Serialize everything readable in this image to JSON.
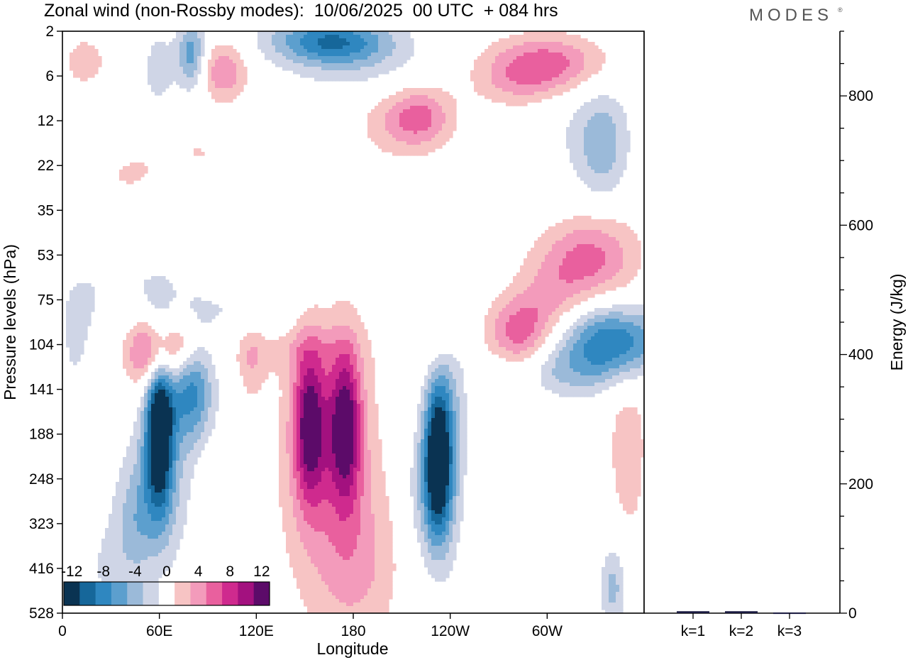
{
  "title": "Zonal wind (non-Rossby modes):  10/06/2025  00 UTC  + 084 hrs",
  "brand": "MODES",
  "brand_mark": "®",
  "colors": {
    "neg": [
      "#0a3352",
      "#16679a",
      "#2f87c0",
      "#5c9fce",
      "#9bbad9",
      "#cfd5e6"
    ],
    "zero": "#ffffff",
    "pos": [
      "#f7c4c4",
      "#f39bbb",
      "#e9609e",
      "#cf2a8e",
      "#a3117f",
      "#5c0b69"
    ]
  },
  "chart_data": [
    {
      "type": "heatmap",
      "xlabel": "Longitude",
      "ylabel": "Pressure levels (hPa)",
      "x_ticks": [
        "0",
        "60E",
        "120E",
        "180",
        "120W",
        "60W"
      ],
      "y_ticks": [
        "2",
        "6",
        "12",
        "22",
        "35",
        "53",
        "75",
        "104",
        "141",
        "188",
        "248",
        "323",
        "416",
        "528"
      ],
      "colorbar_labels": [
        "-12",
        "-8",
        "-4",
        "0",
        "4",
        "8",
        "12"
      ],
      "units_note": "",
      "blobs": [
        {
          "lon": 60,
          "lev": 8.7,
          "w": 6,
          "h": 1.3,
          "v": -15
        },
        {
          "lon": 79,
          "lev": 8.0,
          "w": 10,
          "h": 0.9,
          "v": -9
        },
        {
          "lon": 58,
          "lev": 10.3,
          "w": 14,
          "h": 1.2,
          "v": -5
        },
        {
          "lon": 44,
          "lev": 11.2,
          "w": 8,
          "h": 0.9,
          "v": -3
        },
        {
          "lon": 26,
          "lev": 12.0,
          "w": 10,
          "h": 1.0,
          "v": -2
        },
        {
          "lon": 58,
          "lev": 7.2,
          "w": 12,
          "h": 0.55,
          "v": 10
        },
        {
          "lon": 76,
          "lev": 7.0,
          "w": 8,
          "h": 0.4,
          "v": 3
        },
        {
          "lon": 153,
          "lev": 8.8,
          "w": 7,
          "h": 1.2,
          "v": 11
        },
        {
          "lon": 175,
          "lev": 8.8,
          "w": 7,
          "h": 1.2,
          "v": 11
        },
        {
          "lon": 165,
          "lev": 9.7,
          "w": 22,
          "h": 2.3,
          "v": 5
        },
        {
          "lon": 185,
          "lev": 12.0,
          "w": 18,
          "h": 1.3,
          "v": 3
        },
        {
          "lon": 232,
          "lev": 9.6,
          "w": 6,
          "h": 1.2,
          "v": -13
        },
        {
          "lon": 238,
          "lev": 9.0,
          "w": 8,
          "h": 1.8,
          "v": -5
        },
        {
          "lon": 224,
          "lev": 10.3,
          "w": 10,
          "h": 1.1,
          "v": -3
        },
        {
          "lon": 342,
          "lev": 6.9,
          "w": 22,
          "h": 0.55,
          "v": -10
        },
        {
          "lon": 308,
          "lev": 7.6,
          "w": 30,
          "h": 0.45,
          "v": -4
        },
        {
          "lon": 282,
          "lev": 6.8,
          "w": 14,
          "h": 0.55,
          "v": 7
        },
        {
          "lon": 320,
          "lev": 5.3,
          "w": 22,
          "h": 0.6,
          "v": 5
        },
        {
          "lon": 330,
          "lev": 4.7,
          "w": 20,
          "h": 0.6,
          "v": 3
        },
        {
          "lon": 300,
          "lev": 6.1,
          "w": 16,
          "h": 0.5,
          "v": 3
        },
        {
          "lon": 350,
          "lev": 9.3,
          "w": 10,
          "h": 1.8,
          "v": 3
        },
        {
          "lon": 341,
          "lev": 12.4,
          "w": 6,
          "h": 0.7,
          "v": -5
        },
        {
          "lon": 290,
          "lev": 9.2,
          "w": 8,
          "h": 1.2,
          "v": 2
        },
        {
          "lon": 222,
          "lev": 1.9,
          "w": 14,
          "h": 0.45,
          "v": 5
        },
        {
          "lon": 208,
          "lev": 2.1,
          "w": 20,
          "h": 0.6,
          "v": 3
        },
        {
          "lon": 165,
          "lev": 0.2,
          "w": 26,
          "h": 0.35,
          "v": -9
        },
        {
          "lon": 180,
          "lev": 0.7,
          "w": 30,
          "h": 0.5,
          "v": -3
        },
        {
          "lon": 300,
          "lev": 0.7,
          "w": 26,
          "h": 0.45,
          "v": 7
        },
        {
          "lon": 282,
          "lev": 1.2,
          "w": 20,
          "h": 0.4,
          "v": 3
        },
        {
          "lon": 80,
          "lev": 0.5,
          "w": 6,
          "h": 0.55,
          "v": -7
        },
        {
          "lon": 60,
          "lev": 0.8,
          "w": 8,
          "h": 0.6,
          "v": -3
        },
        {
          "lon": 100,
          "lev": 0.9,
          "w": 10,
          "h": 0.45,
          "v": 6
        },
        {
          "lon": 14,
          "lev": 0.8,
          "w": 12,
          "h": 0.6,
          "v": 3
        },
        {
          "lon": 334,
          "lev": 2.6,
          "w": 10,
          "h": 0.8,
          "v": -4
        },
        {
          "lon": 325,
          "lev": 2.2,
          "w": 22,
          "h": 1.0,
          "v": -2
        },
        {
          "lon": 20,
          "lev": 1.8,
          "w": 20,
          "h": 0.5,
          "v": -2
        },
        {
          "lon": 190,
          "lev": 4.0,
          "w": 16,
          "h": 0.5,
          "v": -2
        },
        {
          "lon": 85,
          "lev": 2.7,
          "w": 24,
          "h": 0.5,
          "v": 2
        },
        {
          "lon": 40,
          "lev": 3.2,
          "w": 16,
          "h": 0.45,
          "v": 2
        },
        {
          "lon": 10,
          "lev": 6.8,
          "w": 8,
          "h": 0.8,
          "v": -3
        },
        {
          "lon": 44,
          "lev": 5.8,
          "w": 30,
          "h": 0.5,
          "v": -2
        },
        {
          "lon": 113,
          "lev": 6.3,
          "w": 24,
          "h": 0.45,
          "v": -2
        },
        {
          "lon": 117,
          "lev": 7.3,
          "w": 6,
          "h": 0.7,
          "v": 3
        },
        {
          "lon": 140,
          "lev": 7.1,
          "w": 30,
          "h": 0.4,
          "v": 2
        },
        {
          "lon": 232,
          "lev": 6.9,
          "w": 10,
          "h": 0.55,
          "v": 3
        },
        {
          "lon": 90,
          "lev": 10.2,
          "w": 5,
          "h": 0.6,
          "v": 2
        },
        {
          "lon": 116,
          "lev": 12.5,
          "w": 6,
          "h": 0.6,
          "v": -2
        },
        {
          "lon": 22,
          "lev": 7.4,
          "w": 6,
          "h": 0.6,
          "v": 2
        }
      ],
      "energy_axis": {
        "ylabel": "Energy (J/kg)",
        "y_ticks": [
          "0",
          "200",
          "400",
          "600",
          "800"
        ],
        "ylim": [
          0,
          900
        ],
        "categories": [
          "k=1",
          "k=2",
          "k=3"
        ],
        "values": [
          3,
          3,
          1
        ],
        "bar_color": "#1a1a40"
      }
    }
  ]
}
